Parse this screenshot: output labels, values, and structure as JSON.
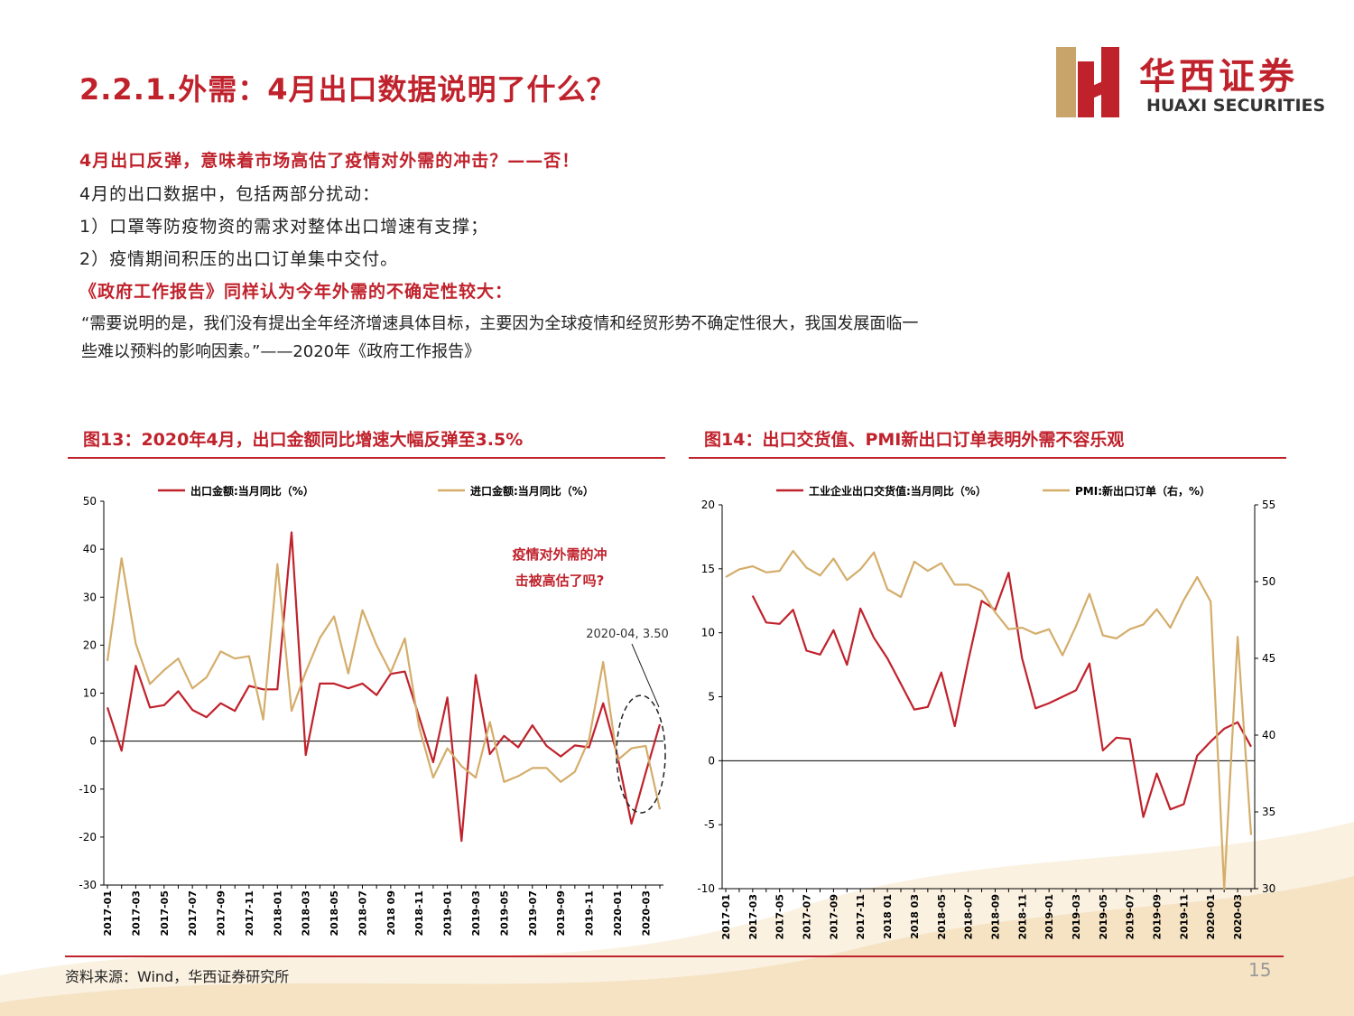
{
  "header": {
    "title": "2.2.1.外需：4月出口数据说明了什么？",
    "logo_cn": "华西证券",
    "logo_en": "HUAXI SECURITIES"
  },
  "body": {
    "heading1": "4月出口反弹，意味着市场高估了疫情对外需的冲击？——否！",
    "lines": [
      "4月的出口数据中，包括两部分扰动：",
      "1）口罩等防疫物资的需求对整体出口增速有支撑；",
      "2）疫情期间积压的出口订单集中交付。"
    ],
    "heading2": "《政府工作报告》同样认为今年外需的不确定性较大：",
    "quote": [
      "“需要说明的是，我们没有提出全年经济增速具体目标，主要因为全球疫情和经贸形势不确定性很大，我国发展面临一",
      "些难以预料的影响因素。”——2020年《政府工作报告》"
    ]
  },
  "chart_data": [
    {
      "type": "line",
      "title": "图13：2020年4月，出口金额同比增速大幅反弹至3.5%",
      "categories": [
        "2017-01",
        null,
        "2017-03",
        null,
        "2017-05",
        null,
        "2017-07",
        null,
        "2017-09",
        null,
        "2017-11",
        null,
        "2018-01",
        null,
        "2018-03",
        null,
        "2018-05",
        null,
        "2018-07",
        null,
        "2018 09",
        null,
        "2018-11",
        null,
        "2019-01",
        null,
        "2019-03",
        null,
        "2019-05",
        null,
        "2019-07",
        null,
        "2019-09",
        null,
        "2019-11",
        null,
        "2020-01",
        null,
        "2020-03",
        null
      ],
      "series": [
        {
          "name": "出口金额:当月同比（%）",
          "color": "#c0222c",
          "values": [
            7,
            -2,
            15.7,
            7,
            7.5,
            10.4,
            6.5,
            5,
            7.9,
            6.3,
            11.5,
            10.8,
            10.8,
            43.5,
            -2.9,
            12,
            12,
            11,
            12,
            9.6,
            14,
            14.5,
            5.1,
            -4.4,
            9.1,
            -20.8,
            13.8,
            -2.7,
            1.1,
            -1.3,
            3.3,
            -1,
            -3.2,
            -0.9,
            -1.3,
            7.9,
            -3,
            -17.2,
            -6.6,
            3.5
          ]
        },
        {
          "name": "进口金额:当月同比（%）",
          "color": "#d4ad6a",
          "values": [
            16.7,
            38.1,
            20.3,
            11.9,
            14.8,
            17.2,
            11,
            13.3,
            18.7,
            17.2,
            17.7,
            4.5,
            36.9,
            6.3,
            14.4,
            21.5,
            26,
            14.1,
            27.3,
            20,
            14.3,
            21.4,
            3,
            -7.6,
            -1.5,
            -5.2,
            -7.6,
            4,
            -8.5,
            -7.3,
            -5.6,
            -5.6,
            -8.5,
            -6.4,
            0.3,
            16.5,
            -4,
            -1.5,
            -1,
            -14.2
          ]
        }
      ],
      "ylim": [
        -30,
        50
      ],
      "yticks": [
        -30,
        -20,
        -10,
        0,
        10,
        20,
        30,
        40,
        50
      ],
      "annotations": [
        "疫情对外需的冲",
        "击被高估了吗?",
        "2020-04, 3.50"
      ]
    },
    {
      "type": "line",
      "title": "图14：出口交货值、PMI新出口订单表明外需不容乐观",
      "categories": [
        "2017-01",
        null,
        "2017-03",
        null,
        "2017-05",
        null,
        "2017-07",
        null,
        "2017-09",
        null,
        "2017-11",
        null,
        "2018 01",
        null,
        "2018 03",
        null,
        "2018-05",
        null,
        "2018-07",
        null,
        "2018-09",
        null,
        "2018-11",
        null,
        "2019-01",
        null,
        "2019-03",
        null,
        "2019-05",
        null,
        "2019-07",
        null,
        "2019-09",
        null,
        "2019-11",
        null,
        "2020-01",
        null,
        "2020-03",
        null
      ],
      "series": [
        {
          "name": "工业企业出口交货值:当月同比（%）",
          "color": "#c0222c",
          "values": [
            null,
            null,
            12.9,
            10.8,
            10.7,
            11.8,
            8.6,
            8.3,
            10.2,
            7.5,
            11.9,
            9.6,
            8,
            6,
            4,
            4.2,
            6.9,
            2.7,
            7.8,
            12.5,
            11.8,
            14.7,
            8,
            4.1,
            4.5,
            5,
            5.5,
            7.6,
            0.8,
            1.8,
            1.7,
            -4.4,
            -1,
            -3.8,
            -3.4,
            0.4,
            1.5,
            2.5,
            3,
            1.1
          ]
        },
        {
          "name": "PMI:新出口订单（右，%）",
          "color": "#d4ad6a",
          "axis": "y2",
          "values": [
            50.3,
            50.8,
            51.0,
            50.6,
            50.7,
            52.0,
            50.9,
            50.4,
            51.5,
            50.1,
            50.8,
            51.9,
            49.5,
            49.0,
            51.3,
            50.7,
            51.2,
            49.8,
            49.8,
            49.4,
            48.0,
            46.9,
            47.0,
            46.6,
            46.9,
            45.2,
            47.1,
            49.2,
            46.5,
            46.3,
            46.9,
            47.2,
            48.2,
            47.0,
            48.8,
            50.3,
            48.7,
            30,
            46.4,
            33.5
          ]
        }
      ],
      "ylim": [
        -10,
        20
      ],
      "yticks": [
        -10,
        -5,
        0,
        5,
        10,
        15,
        20
      ],
      "y2lim": [
        30,
        55
      ],
      "y2ticks": [
        30,
        35,
        40,
        45,
        50,
        55
      ]
    }
  ],
  "footer": {
    "source": "资料来源：Wind，华西证券研究所",
    "page": "15"
  }
}
